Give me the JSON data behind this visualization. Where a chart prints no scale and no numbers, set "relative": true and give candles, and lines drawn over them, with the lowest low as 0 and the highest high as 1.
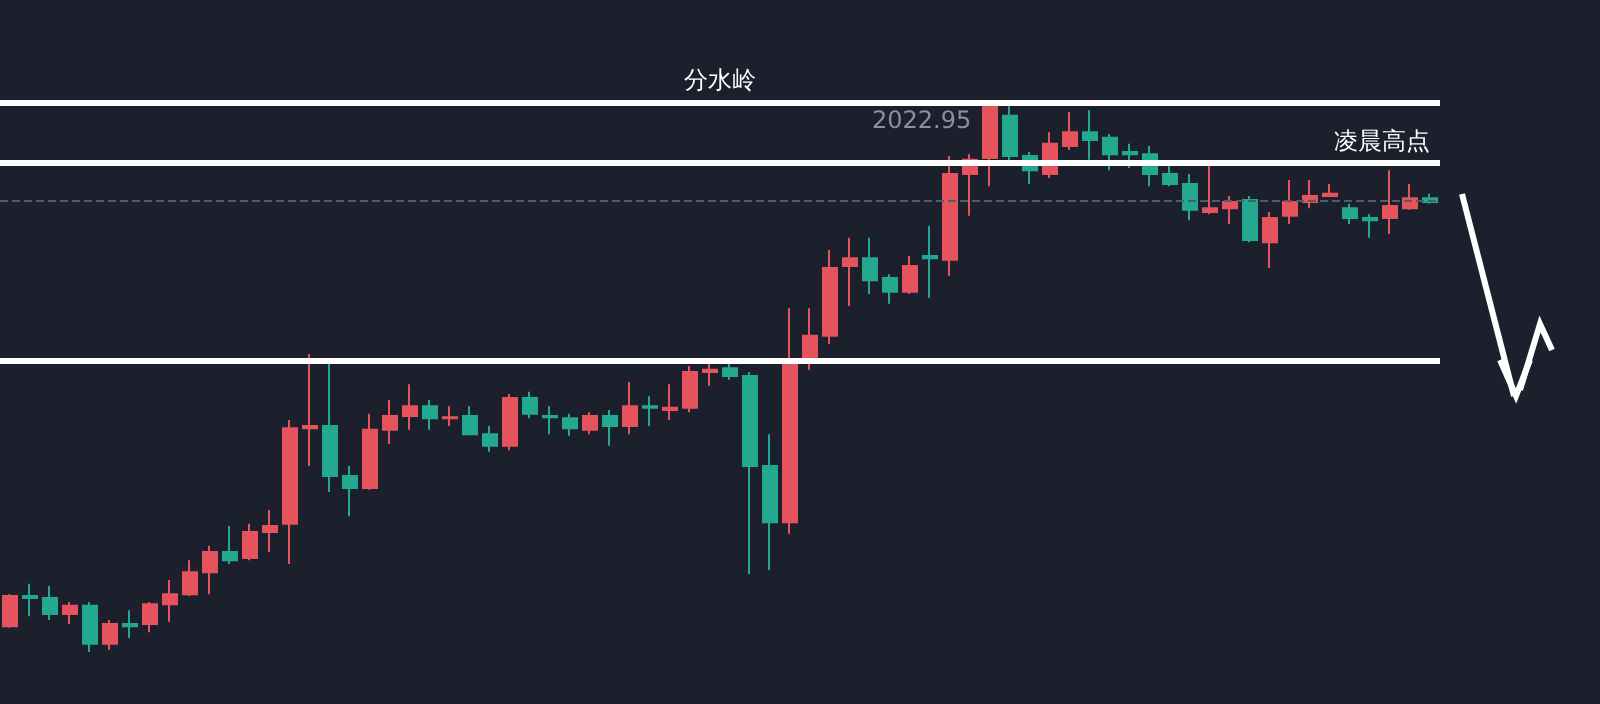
{
  "chart_data": {
    "type": "candlestick",
    "relative": true,
    "categories": [
      null,
      null,
      null,
      null,
      null,
      null,
      null,
      null,
      null,
      null,
      null,
      null,
      null,
      null,
      null,
      null,
      null,
      null,
      null,
      null,
      null,
      null,
      null,
      null,
      null,
      null,
      null,
      null,
      null,
      null,
      null,
      null,
      null,
      null,
      null,
      null,
      null,
      null,
      null,
      null,
      null,
      null,
      null,
      null,
      null,
      null,
      null,
      null,
      null,
      null,
      null,
      null,
      null,
      null,
      null,
      null,
      null,
      null,
      null,
      null,
      null,
      null,
      null,
      null,
      null,
      null,
      null,
      null,
      null,
      null,
      null,
      null
    ],
    "ohlc": [
      [
        0.047,
        0.105,
        0.044,
        0.102
      ],
      [
        0.102,
        0.124,
        0.065,
        0.098
      ],
      [
        0.098,
        0.12,
        0.058,
        0.069
      ],
      [
        0.069,
        0.091,
        0.051,
        0.084
      ],
      [
        0.084,
        0.091,
        0,
        0.015
      ],
      [
        0.015,
        0.058,
        0.004,
        0.051
      ],
      [
        0.051,
        0.076,
        0.025,
        0.047
      ],
      [
        0.051,
        0.091,
        0.036,
        0.087
      ],
      [
        0.087,
        0.131,
        0.055,
        0.105
      ],
      [
        0.105,
        0.167,
        0.102,
        0.145
      ],
      [
        0.145,
        0.193,
        0.105,
        0.182
      ],
      [
        0.182,
        0.229,
        0.16,
        0.167
      ],
      [
        0.171,
        0.233,
        0.167,
        0.218
      ],
      [
        0.218,
        0.258,
        0.182,
        0.229
      ],
      [
        0.233,
        0.422,
        0.16,
        0.407
      ],
      [
        0.407,
        0.542,
        0.338,
        0.411
      ],
      [
        0.411,
        0.524,
        0.291,
        0.32
      ],
      [
        0.32,
        0.338,
        0.247,
        0.298
      ],
      [
        0.298,
        0.433,
        0.295,
        0.404
      ],
      [
        0.404,
        0.458,
        0.378,
        0.429
      ],
      [
        0.429,
        0.487,
        0.404,
        0.447
      ],
      [
        0.447,
        0.458,
        0.404,
        0.425
      ],
      [
        0.425,
        0.447,
        0.411,
        0.427
      ],
      [
        0.429,
        0.447,
        0.396,
        0.396
      ],
      [
        0.396,
        0.411,
        0.364,
        0.375
      ],
      [
        0.375,
        0.469,
        0.367,
        0.462
      ],
      [
        0.462,
        0.473,
        0.425,
        0.433
      ],
      [
        0.429,
        0.447,
        0.396,
        0.427
      ],
      [
        0.425,
        0.433,
        0.393,
        0.407
      ],
      [
        0.404,
        0.436,
        0.396,
        0.429
      ],
      [
        0.429,
        0.44,
        0.375,
        0.411
      ],
      [
        0.411,
        0.491,
        0.396,
        0.447
      ],
      [
        0.447,
        0.465,
        0.411,
        0.444
      ],
      [
        0.44,
        0.487,
        0.422,
        0.444
      ],
      [
        0.444,
        0.52,
        0.436,
        0.509
      ],
      [
        0.509,
        0.524,
        0.484,
        0.513
      ],
      [
        0.516,
        0.531,
        0.495,
        0.502
      ],
      [
        0.502,
        0.509,
        0.142,
        0.338
      ],
      [
        0.338,
        0.396,
        0.149,
        0.236
      ],
      [
        0.236,
        0.625,
        0.215,
        0.524
      ],
      [
        0.535,
        0.625,
        0.513,
        0.575
      ],
      [
        0.575,
        0.731,
        0.56,
        0.698
      ],
      [
        0.702,
        0.753,
        0.629,
        0.716
      ],
      [
        0.716,
        0.753,
        0.651,
        0.676
      ],
      [
        0.68,
        0.687,
        0.633,
        0.655
      ],
      [
        0.655,
        0.72,
        0.651,
        0.702
      ],
      [
        0.72,
        0.775,
        0.644,
        0.716
      ],
      [
        0.713,
        0.902,
        0.684,
        0.869
      ],
      [
        0.869,
        0.905,
        0.793,
        0.895
      ],
      [
        0.898,
        1,
        0.847,
        0.993
      ],
      [
        0.975,
        0.993,
        0.884,
        0.902
      ],
      [
        0.902,
        0.909,
        0.851,
        0.876
      ],
      [
        0.869,
        0.945,
        0.862,
        0.924
      ],
      [
        0.92,
        0.982,
        0.913,
        0.945
      ],
      [
        0.945,
        0.985,
        0.895,
        0.931
      ],
      [
        0.935,
        0.942,
        0.876,
        0.905
      ],
      [
        0.909,
        0.924,
        0.88,
        0.905
      ],
      [
        0.905,
        0.92,
        0.847,
        0.869
      ],
      [
        0.869,
        0.884,
        0.847,
        0.851
      ],
      [
        0.851,
        0.869,
        0.785,
        0.804
      ],
      [
        0.8,
        0.887,
        0.796,
        0.807
      ],
      [
        0.807,
        0.829,
        0.778,
        0.818
      ],
      [
        0.822,
        0.829,
        0.745,
        0.749
      ],
      [
        0.745,
        0.8,
        0.698,
        0.789
      ],
      [
        0.793,
        0.858,
        0.778,
        0.818
      ],
      [
        0.818,
        0.858,
        0.807,
        0.829
      ],
      [
        0.829,
        0.851,
        0.829,
        0.833
      ],
      [
        0.807,
        0.815,
        0.778,
        0.789
      ],
      [
        0.789,
        0.796,
        0.753,
        0.785
      ],
      [
        0.789,
        0.876,
        0.76,
        0.811
      ],
      [
        0.807,
        0.851,
        0.804,
        0.825
      ],
      [
        0.825,
        0.833,
        0.815,
        0.818
      ]
    ],
    "colors": [
      "#e5535d",
      "#22a98f",
      "#22a98f",
      "#e5535d",
      "#22a98f",
      "#e5535d",
      "#22a98f",
      "#e5535d",
      "#e5535d",
      "#e5535d",
      "#e5535d",
      "#22a98f",
      "#e5535d",
      "#e5535d",
      "#e5535d",
      "#e5535d",
      "#22a98f",
      "#22a98f",
      "#e5535d",
      "#e5535d",
      "#e5535d",
      "#22a98f",
      "#e5535d",
      "#22a98f",
      "#22a98f",
      "#e5535d",
      "#22a98f",
      "#22a98f",
      "#22a98f",
      "#e5535d",
      "#22a98f",
      "#e5535d",
      "#22a98f",
      "#e5535d",
      "#e5535d",
      "#e5535d",
      "#22a98f",
      "#22a98f",
      "#22a98f",
      "#e5535d",
      "#e5535d",
      "#e5535d",
      "#e5535d",
      "#22a98f",
      "#22a98f",
      "#e5535d",
      "#22a98f",
      "#e5535d",
      "#e5535d",
      "#e5535d",
      "#22a98f",
      "#22a98f",
      "#e5535d",
      "#e5535d",
      "#22a98f",
      "#22a98f",
      "#22a98f",
      "#22a98f",
      "#22a98f",
      "#22a98f",
      "#e5535d",
      "#e5535d",
      "#22a98f",
      "#e5535d",
      "#e5535d",
      "#e5535d",
      "#e5535d",
      "#22a98f",
      "#22a98f",
      "#e5535d",
      "#e5535d",
      "#22a98f"
    ],
    "ref_lines": [
      {
        "axis": "y",
        "value": 0.996,
        "label": "分水岭",
        "color": "#ffffff"
      },
      {
        "axis": "y",
        "value": 0.891,
        "label": "凌晨高点",
        "color": "#ffffff"
      },
      {
        "axis": "y",
        "value": 0.531,
        "color": "#ffffff"
      },
      {
        "axis": "y",
        "value": 0.822,
        "color": "#4e5d68",
        "line_style": "dashed"
      }
    ],
    "annotations": [
      "2022.95"
    ]
  }
}
